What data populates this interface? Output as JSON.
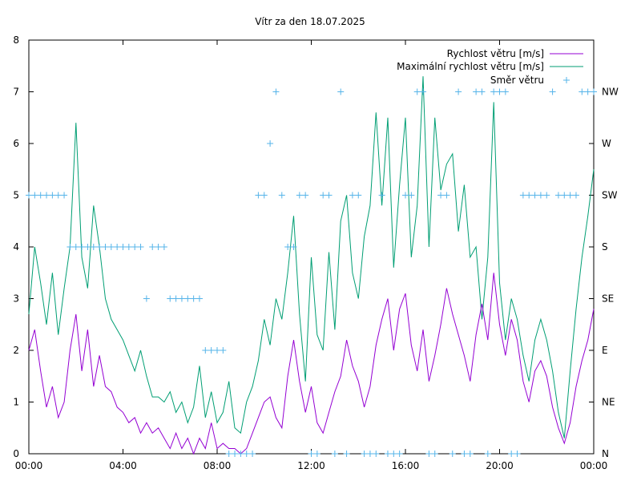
{
  "chart_data": {
    "type": "line",
    "title": "Vítr za den 18.07.2025",
    "x_ticks": [
      "00:00",
      "04:00",
      "08:00",
      "12:00",
      "16:00",
      "20:00",
      "00:00"
    ],
    "x_range_hours": [
      0,
      24
    ],
    "ylim": [
      0,
      8
    ],
    "y_ticks": [
      "0",
      "1",
      "2",
      "3",
      "4",
      "5",
      "6",
      "7",
      "8"
    ],
    "y2_ticks": [
      "N",
      "NE",
      "E",
      "SE",
      "S",
      "SW",
      "W",
      "NW"
    ],
    "legend_position": "top-right",
    "colors": {
      "speed": "#9400d3",
      "gust": "#009e73",
      "direction": "#56b4e9"
    },
    "legend": {
      "speed": "Rychlost větru [m/s]",
      "gust": "Maximální rychlost větru [m/s]",
      "direction": "Směr větru"
    },
    "series": [
      {
        "name": "Rychlost větru [m/s]",
        "x": [
          0.0,
          0.25,
          0.5,
          0.75,
          1.0,
          1.25,
          1.5,
          1.75,
          2.0,
          2.25,
          2.5,
          2.75,
          3.0,
          3.25,
          3.5,
          3.75,
          4.0,
          4.25,
          4.5,
          4.75,
          5.0,
          5.25,
          5.5,
          5.75,
          6.0,
          6.25,
          6.5,
          6.75,
          7.0,
          7.25,
          7.5,
          7.75,
          8.0,
          8.25,
          8.5,
          8.75,
          9.0,
          9.25,
          9.5,
          9.75,
          10.0,
          10.25,
          10.5,
          10.75,
          11.0,
          11.25,
          11.5,
          11.75,
          12.0,
          12.25,
          12.5,
          12.75,
          13.0,
          13.25,
          13.5,
          13.75,
          14.0,
          14.25,
          14.5,
          14.75,
          15.0,
          15.25,
          15.5,
          15.75,
          16.0,
          16.25,
          16.5,
          16.75,
          17.0,
          17.25,
          17.5,
          17.75,
          18.0,
          18.25,
          18.5,
          18.75,
          19.0,
          19.25,
          19.5,
          19.75,
          20.0,
          20.25,
          20.5,
          20.75,
          21.0,
          21.25,
          21.5,
          21.75,
          22.0,
          22.25,
          22.5,
          22.75,
          23.0,
          23.25,
          23.5,
          23.75,
          24.0
        ],
        "values": [
          2.0,
          2.4,
          1.6,
          0.9,
          1.3,
          0.7,
          1.0,
          2.0,
          2.7,
          1.6,
          2.4,
          1.3,
          1.9,
          1.3,
          1.2,
          0.9,
          0.8,
          0.6,
          0.7,
          0.4,
          0.6,
          0.4,
          0.5,
          0.3,
          0.1,
          0.4,
          0.1,
          0.3,
          0.0,
          0.3,
          0.1,
          0.6,
          0.1,
          0.2,
          0.1,
          0.1,
          0.0,
          0.1,
          0.4,
          0.7,
          1.0,
          1.1,
          0.7,
          0.5,
          1.5,
          2.2,
          1.4,
          0.8,
          1.3,
          0.6,
          0.4,
          0.8,
          1.2,
          1.5,
          2.2,
          1.7,
          1.4,
          0.9,
          1.3,
          2.1,
          2.6,
          3.0,
          2.0,
          2.8,
          3.1,
          2.1,
          1.6,
          2.4,
          1.4,
          1.9,
          2.5,
          3.2,
          2.7,
          2.3,
          1.9,
          1.4,
          2.3,
          2.9,
          2.2,
          3.5,
          2.5,
          1.9,
          2.6,
          2.2,
          1.4,
          1.0,
          1.6,
          1.8,
          1.5,
          0.9,
          0.5,
          0.2,
          0.6,
          1.3,
          1.8,
          2.2,
          2.8
        ]
      },
      {
        "name": "Maximální rychlost větru [m/s]",
        "x": [
          0.0,
          0.25,
          0.5,
          0.75,
          1.0,
          1.25,
          1.5,
          1.75,
          2.0,
          2.25,
          2.5,
          2.75,
          3.0,
          3.25,
          3.5,
          3.75,
          4.0,
          4.25,
          4.5,
          4.75,
          5.0,
          5.25,
          5.5,
          5.75,
          6.0,
          6.25,
          6.5,
          6.75,
          7.0,
          7.25,
          7.5,
          7.75,
          8.0,
          8.25,
          8.5,
          8.75,
          9.0,
          9.25,
          9.5,
          9.75,
          10.0,
          10.25,
          10.5,
          10.75,
          11.0,
          11.25,
          11.5,
          11.75,
          12.0,
          12.25,
          12.5,
          12.75,
          13.0,
          13.25,
          13.5,
          13.75,
          14.0,
          14.25,
          14.5,
          14.75,
          15.0,
          15.25,
          15.5,
          15.75,
          16.0,
          16.25,
          16.5,
          16.75,
          17.0,
          17.25,
          17.5,
          17.75,
          18.0,
          18.25,
          18.5,
          18.75,
          19.0,
          19.25,
          19.5,
          19.75,
          20.0,
          20.25,
          20.5,
          20.75,
          21.0,
          21.25,
          21.5,
          21.75,
          22.0,
          22.25,
          22.5,
          22.75,
          23.0,
          23.25,
          23.5,
          23.75,
          24.0
        ],
        "values": [
          2.7,
          4.0,
          3.3,
          2.5,
          3.5,
          2.3,
          3.2,
          4.0,
          6.4,
          3.8,
          3.2,
          4.8,
          4.0,
          3.0,
          2.6,
          2.4,
          2.2,
          1.9,
          1.6,
          2.0,
          1.5,
          1.1,
          1.1,
          1.0,
          1.2,
          0.8,
          1.0,
          0.6,
          0.9,
          1.7,
          0.7,
          1.2,
          0.6,
          0.8,
          1.4,
          0.5,
          0.4,
          1.0,
          1.3,
          1.8,
          2.6,
          2.1,
          3.0,
          2.6,
          3.5,
          4.6,
          2.7,
          1.4,
          3.8,
          2.3,
          2.0,
          3.9,
          2.4,
          4.5,
          5.0,
          3.5,
          3.0,
          4.2,
          4.8,
          6.6,
          4.8,
          6.5,
          3.6,
          5.2,
          6.5,
          3.8,
          4.8,
          7.3,
          4.0,
          6.5,
          5.1,
          5.6,
          5.8,
          4.3,
          5.2,
          3.8,
          4.0,
          2.6,
          3.8,
          6.8,
          3.3,
          2.2,
          3.0,
          2.6,
          1.9,
          1.4,
          2.2,
          2.6,
          2.2,
          1.6,
          0.8,
          0.3,
          1.6,
          2.8,
          3.8,
          4.6,
          5.5
        ]
      },
      {
        "name": "Směr větru",
        "x": [
          0.0,
          0.25,
          0.5,
          0.75,
          1.0,
          1.25,
          1.5,
          1.75,
          2.0,
          2.25,
          2.5,
          2.75,
          3.0,
          3.25,
          3.5,
          3.75,
          4.0,
          4.25,
          4.5,
          4.75,
          5.0,
          5.25,
          5.5,
          5.75,
          6.0,
          6.25,
          6.5,
          6.75,
          7.0,
          7.25,
          7.5,
          7.75,
          8.0,
          8.25,
          8.5,
          8.75,
          9.0,
          9.25,
          9.5,
          9.75,
          10.0,
          10.25,
          10.5,
          10.75,
          11.0,
          11.25,
          11.5,
          11.75,
          12.0,
          12.25,
          12.5,
          12.75,
          13.0,
          13.25,
          13.5,
          13.75,
          14.0,
          14.25,
          14.5,
          14.75,
          15.0,
          15.25,
          15.5,
          15.75,
          16.0,
          16.25,
          16.5,
          16.75,
          17.0,
          17.25,
          17.5,
          17.75,
          18.0,
          18.25,
          18.5,
          18.75,
          19.0,
          19.25,
          19.5,
          19.75,
          20.0,
          20.25,
          20.5,
          20.75,
          21.0,
          21.25,
          21.5,
          21.75,
          22.0,
          22.25,
          22.5,
          22.75,
          23.0,
          23.25,
          23.5,
          23.75,
          24.0
        ],
        "values": [
          5,
          5,
          5,
          5,
          5,
          5,
          5,
          4,
          4,
          4,
          4,
          4,
          4,
          4,
          4,
          4,
          4,
          4,
          4,
          4,
          3,
          4,
          4,
          4,
          3,
          3,
          3,
          3,
          3,
          3,
          2,
          2,
          2,
          2,
          0,
          0,
          0,
          0,
          0,
          5,
          5,
          6,
          7,
          5,
          4,
          4,
          5,
          5,
          0,
          0,
          5,
          5,
          0,
          7,
          0,
          5,
          5,
          0,
          0,
          0,
          5,
          0,
          0,
          0,
          5,
          5,
          7,
          7,
          0,
          0,
          5,
          5,
          0,
          7,
          0,
          0,
          7,
          7,
          0,
          7,
          7,
          7,
          0,
          0,
          5,
          5,
          5,
          5,
          5,
          7,
          5,
          5,
          5,
          5,
          7,
          7,
          7
        ]
      }
    ]
  }
}
